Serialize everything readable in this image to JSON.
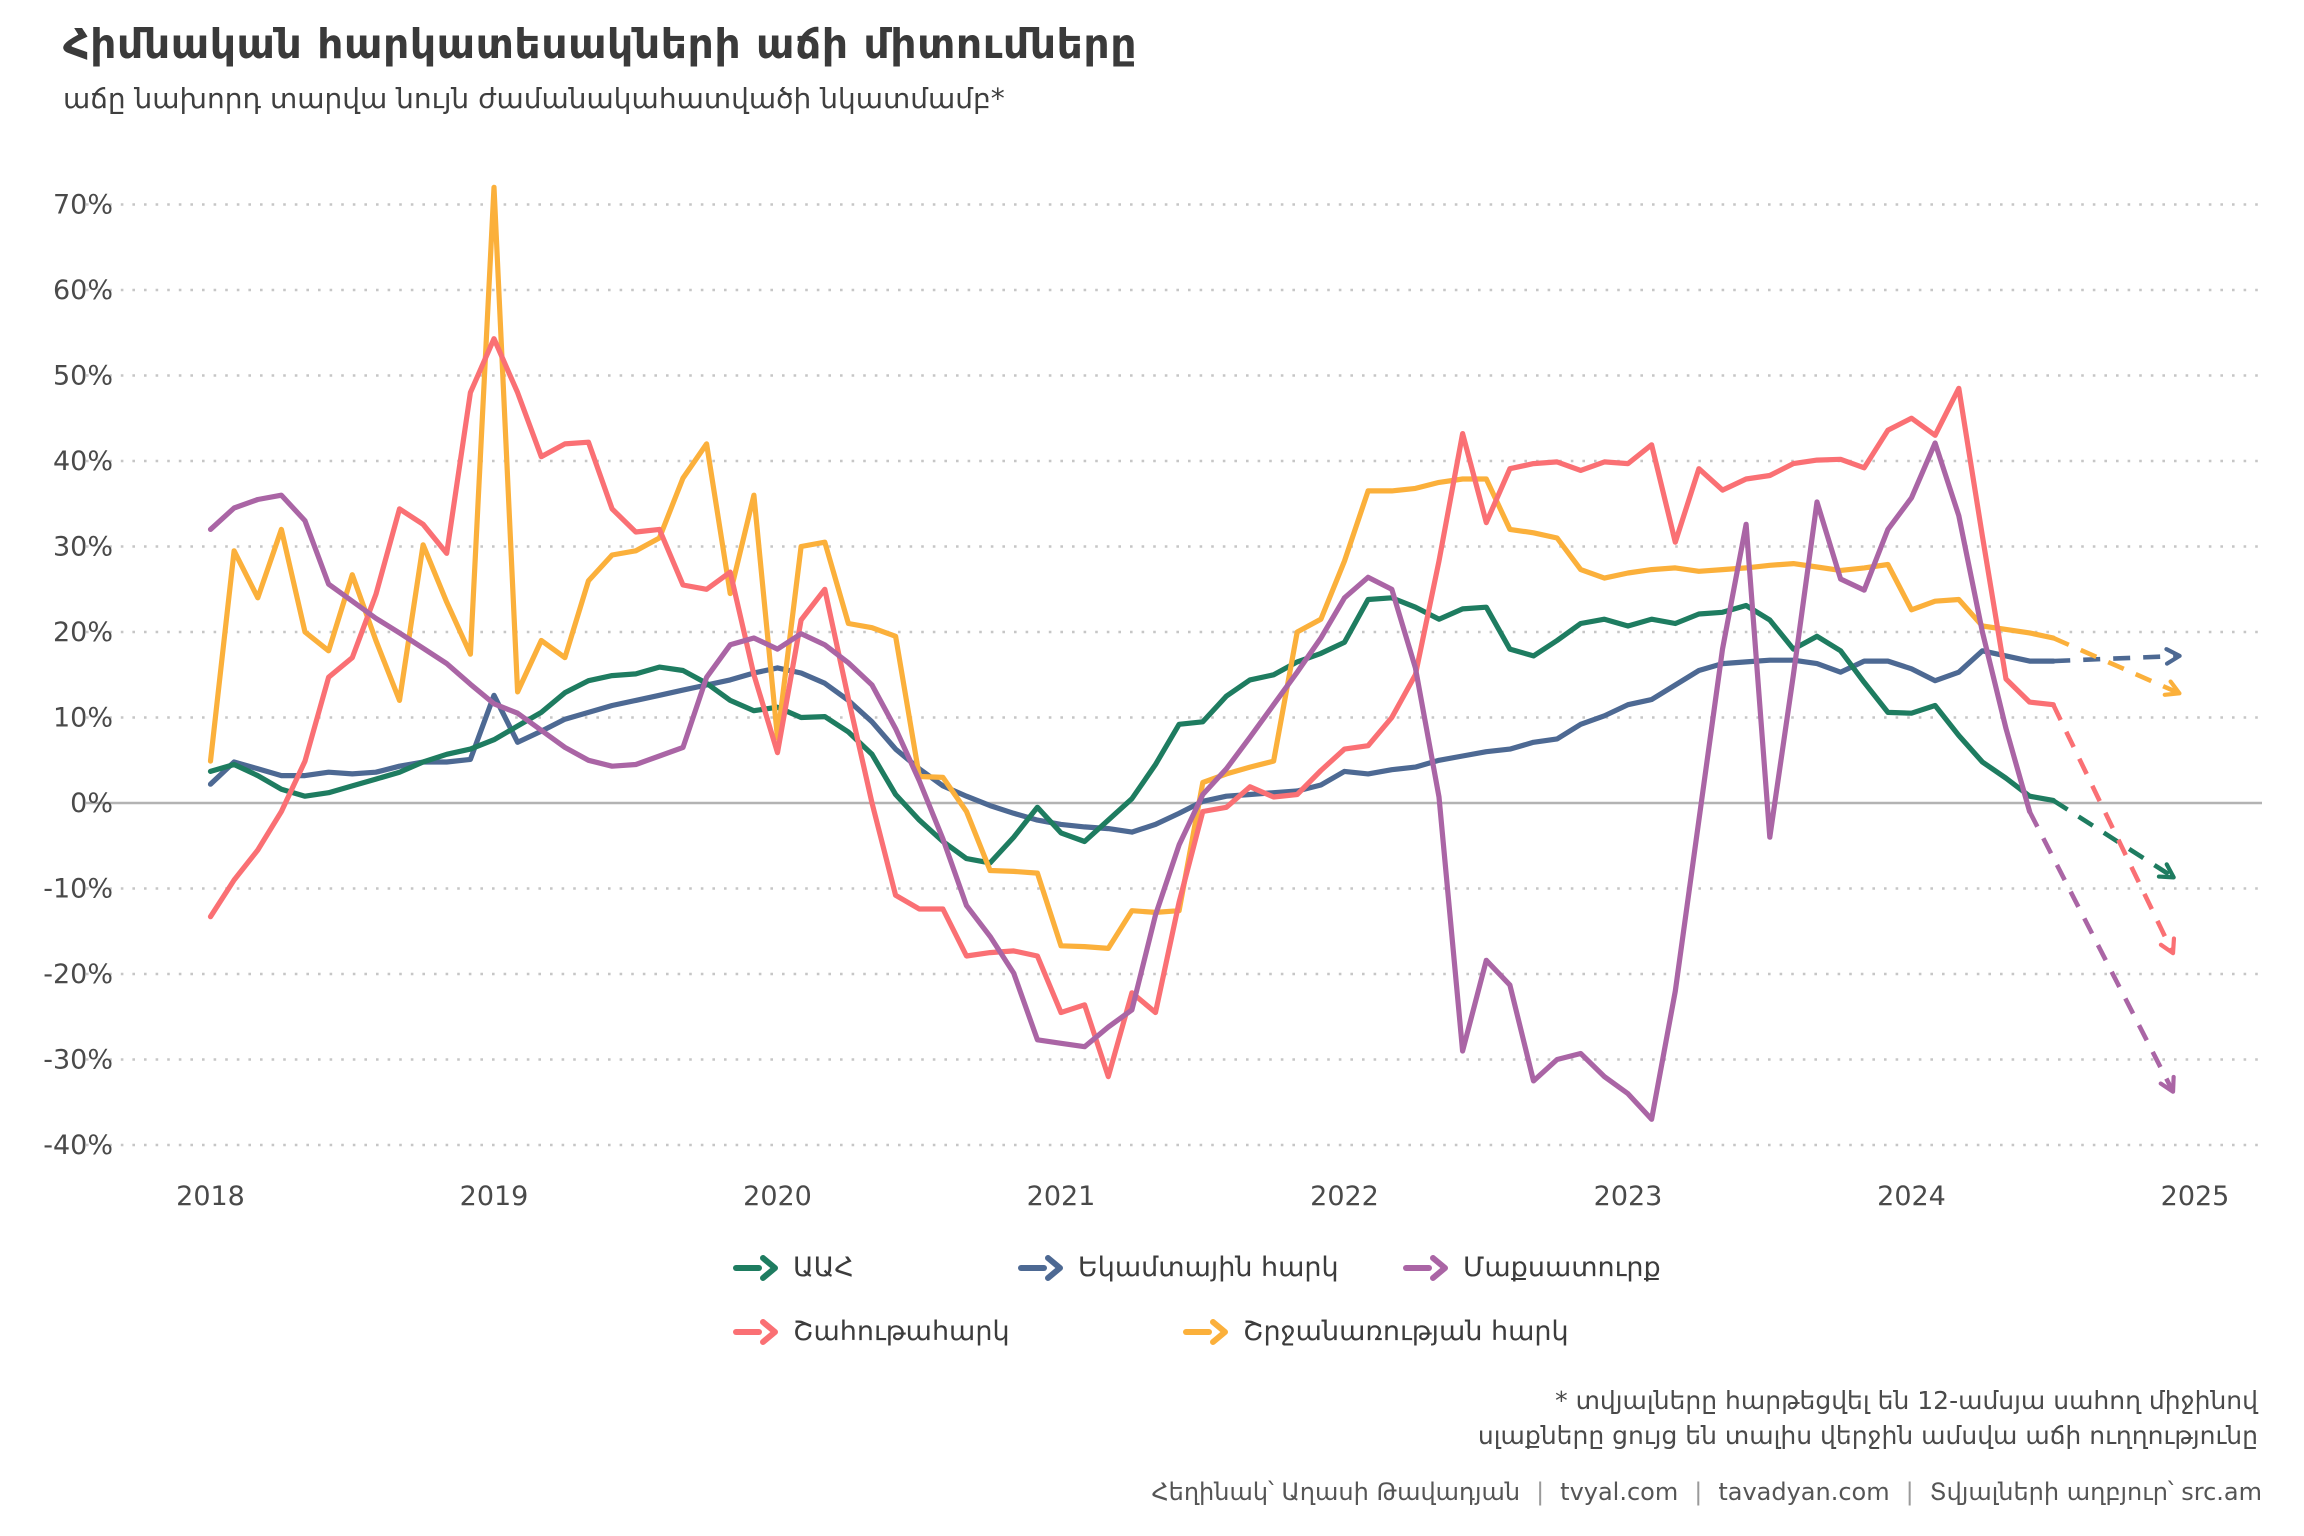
{
  "title": "Հիմնական հարկատեսակների աճի միտումները",
  "subtitle": "աճը նախորդ տարվա նույն ժամանակահատվածի նկատմամբ*",
  "footnote": {
    "line1": "* տվյալները հարթեցվել են 12-ամսյա սահող միջինով",
    "line2": "սլաքները ցույց են տալիս վերջին ամսվա աճի ուղղությունը"
  },
  "footer": {
    "author": "Հեղինակ՝ Աղասի Թավադյան",
    "site1": "tvyal.com",
    "site2": "tavadyan.com",
    "source": "Տվյալների աղբյուր՝ src.am",
    "separator": "|"
  },
  "chart_data": {
    "type": "line",
    "title": "Հիմնական հարկատեսակների աճի միտումները",
    "xlabel": "",
    "ylabel": "",
    "y_unit": "%",
    "x_ticks": [
      2018,
      2019,
      2020,
      2021,
      2022,
      2023,
      2024,
      2025
    ],
    "y_ticks": [
      70,
      60,
      50,
      40,
      30,
      20,
      10,
      0,
      -10,
      -20,
      -30,
      -40
    ],
    "ylim": [
      -42,
      74
    ],
    "grid": "horizontal-dotted, zero-line-solid",
    "legend_position": "bottom",
    "x_start": 2018.0,
    "x_step_months": 1,
    "series": [
      {
        "name": "Եկամտային հարկ",
        "color": "#4d6993",
        "values": [
          2.2,
          4.8,
          4.0,
          3.2,
          3.2,
          3.6,
          3.4,
          3.6,
          4.3,
          4.8,
          4.8,
          5.1,
          12.6,
          7.1,
          8.4,
          9.8,
          10.6,
          11.4,
          12.0,
          12.6,
          13.2,
          13.8,
          14.4,
          15.2,
          15.8,
          15.2,
          14.0,
          12.0,
          9.5,
          6.3,
          4.0,
          2.0,
          0.8,
          -0.3,
          -1.2,
          -2.0,
          -2.5,
          -2.8,
          -3.0,
          -3.4,
          -2.5,
          -1.2,
          0.2,
          0.8,
          1.0,
          1.2,
          1.4,
          2.1,
          3.7,
          3.4,
          3.9,
          4.2,
          5.0,
          5.5,
          6.0,
          6.3,
          7.1,
          7.5,
          9.2,
          10.2,
          11.5,
          12.1,
          13.8,
          15.5,
          16.3,
          16.5,
          16.7,
          16.7,
          16.3,
          15.3,
          16.6,
          16.6,
          15.7,
          14.3,
          15.3,
          17.8,
          17.2,
          16.6,
          16.6
        ],
        "projection_end": {
          "x": 2024.94,
          "y": 17.2
        }
      },
      {
        "name": "ԱԱՀ",
        "color": "#1e7c60",
        "values": [
          3.7,
          4.5,
          3.2,
          1.6,
          0.8,
          1.2,
          2.0,
          2.8,
          3.6,
          4.8,
          5.7,
          6.3,
          7.4,
          9.0,
          10.6,
          12.9,
          14.3,
          14.9,
          15.1,
          15.9,
          15.5,
          14.0,
          12.0,
          10.8,
          11.2,
          10.0,
          10.1,
          8.3,
          5.7,
          1.0,
          -2.0,
          -4.5,
          -6.5,
          -7.0,
          -4.0,
          -0.5,
          -3.5,
          -4.5,
          -2.0,
          0.5,
          4.5,
          9.2,
          9.5,
          12.5,
          14.4,
          15.0,
          16.5,
          17.5,
          18.8,
          23.8,
          24.0,
          22.9,
          21.5,
          22.7,
          22.9,
          18.0,
          17.2,
          19.0,
          21.0,
          21.5,
          20.7,
          21.5,
          21.0,
          22.1,
          22.3,
          23.1,
          21.4,
          18.0,
          19.5,
          17.8,
          14.1,
          10.6,
          10.5,
          11.4,
          7.9,
          4.8,
          2.9,
          0.8,
          0.3
        ],
        "projection_end": {
          "x": 2024.92,
          "y": -8.6
        }
      },
      {
        "name": "Շրջանառության հարկ",
        "color": "#fbb03b",
        "values": [
          4.9,
          29.5,
          24.0,
          32.0,
          20.0,
          17.8,
          26.7,
          19.0,
          12.0,
          30.2,
          23.5,
          17.4,
          72.0,
          13.0,
          19.0,
          17.0,
          26.0,
          29.0,
          29.5,
          31.0,
          38.0,
          42.0,
          24.5,
          36.0,
          7.6,
          30.0,
          30.5,
          21.0,
          20.5,
          19.5,
          3.1,
          3.0,
          -1.0,
          -7.9,
          -8.0,
          -8.2,
          -16.7,
          -16.8,
          -17.0,
          -12.6,
          -12.8,
          -12.6,
          2.4,
          3.4,
          4.2,
          4.9,
          20.0,
          21.5,
          28.3,
          36.5,
          36.5,
          36.8,
          37.5,
          37.9,
          37.9,
          32.0,
          31.6,
          31.0,
          27.3,
          26.3,
          26.9,
          27.3,
          27.5,
          27.1,
          27.3,
          27.5,
          27.8,
          28.0,
          27.6,
          27.2,
          27.5,
          27.9,
          22.6,
          23.6,
          23.8,
          20.7,
          20.3,
          19.9,
          19.3
        ],
        "projection_end": {
          "x": 2024.94,
          "y": 12.9
        }
      },
      {
        "name": "Շահութահարկ",
        "color": "#fa7074",
        "values": [
          -13.3,
          -9.0,
          -5.5,
          -1.0,
          4.9,
          14.7,
          17.0,
          24.4,
          34.4,
          32.6,
          29.2,
          48.0,
          54.3,
          48.0,
          40.5,
          42.0,
          42.2,
          34.4,
          31.7,
          32.0,
          25.5,
          25.0,
          27.0,
          15.0,
          5.9,
          21.4,
          25.0,
          12.2,
          0.0,
          -10.8,
          -12.4,
          -12.4,
          -17.9,
          -17.5,
          -17.3,
          -17.9,
          -24.5,
          -23.6,
          -32.0,
          -22.2,
          -24.5,
          -11.6,
          -1.0,
          -0.5,
          1.9,
          0.7,
          1.0,
          3.8,
          6.3,
          6.7,
          10.0,
          15.0,
          28.3,
          43.2,
          32.8,
          39.1,
          39.7,
          39.9,
          38.9,
          39.9,
          39.7,
          41.9,
          30.5,
          39.1,
          36.6,
          37.9,
          38.3,
          39.7,
          40.1,
          40.2,
          39.2,
          43.6,
          45.0,
          43.0,
          48.5,
          31.2,
          14.5,
          11.8,
          11.5
        ],
        "projection_end": {
          "x": 2024.92,
          "y": -17.4
        }
      },
      {
        "name": "Մաքսատուրք",
        "color": "#aa65a5",
        "values": [
          32.0,
          34.5,
          35.5,
          36.0,
          33.0,
          25.6,
          23.6,
          21.6,
          19.9,
          18.1,
          16.3,
          13.9,
          11.6,
          10.5,
          8.5,
          6.5,
          5.0,
          4.3,
          4.5,
          5.5,
          6.5,
          14.7,
          18.5,
          19.3,
          18.0,
          19.8,
          18.5,
          16.4,
          13.8,
          8.7,
          2.6,
          -4.2,
          -12.0,
          -15.6,
          -19.9,
          -27.7,
          -28.1,
          -28.5,
          -26.2,
          -24.2,
          -13.1,
          -4.9,
          1.0,
          4.0,
          7.7,
          11.5,
          15.3,
          19.3,
          24.0,
          26.4,
          25.0,
          15.8,
          0.7,
          -29.0,
          -18.4,
          -21.3,
          -32.5,
          -30.0,
          -29.3,
          -32.0,
          -34.0,
          -37.0,
          -22.0,
          -2.0,
          18.0,
          32.6,
          -4.0,
          15.0,
          35.2,
          26.2,
          24.9,
          32.0,
          35.7,
          42.1,
          33.6,
          20.0,
          8.7,
          -1.0
        ],
        "projection_end": {
          "x": 2024.92,
          "y": -33.6
        }
      }
    ],
    "legend_rows": [
      [
        "ԱԱՀ",
        "Եկամտային հարկ",
        "Մաքսատուրք"
      ],
      [
        "Շահութահարկ",
        "Շրջանառության հարկ"
      ]
    ]
  }
}
